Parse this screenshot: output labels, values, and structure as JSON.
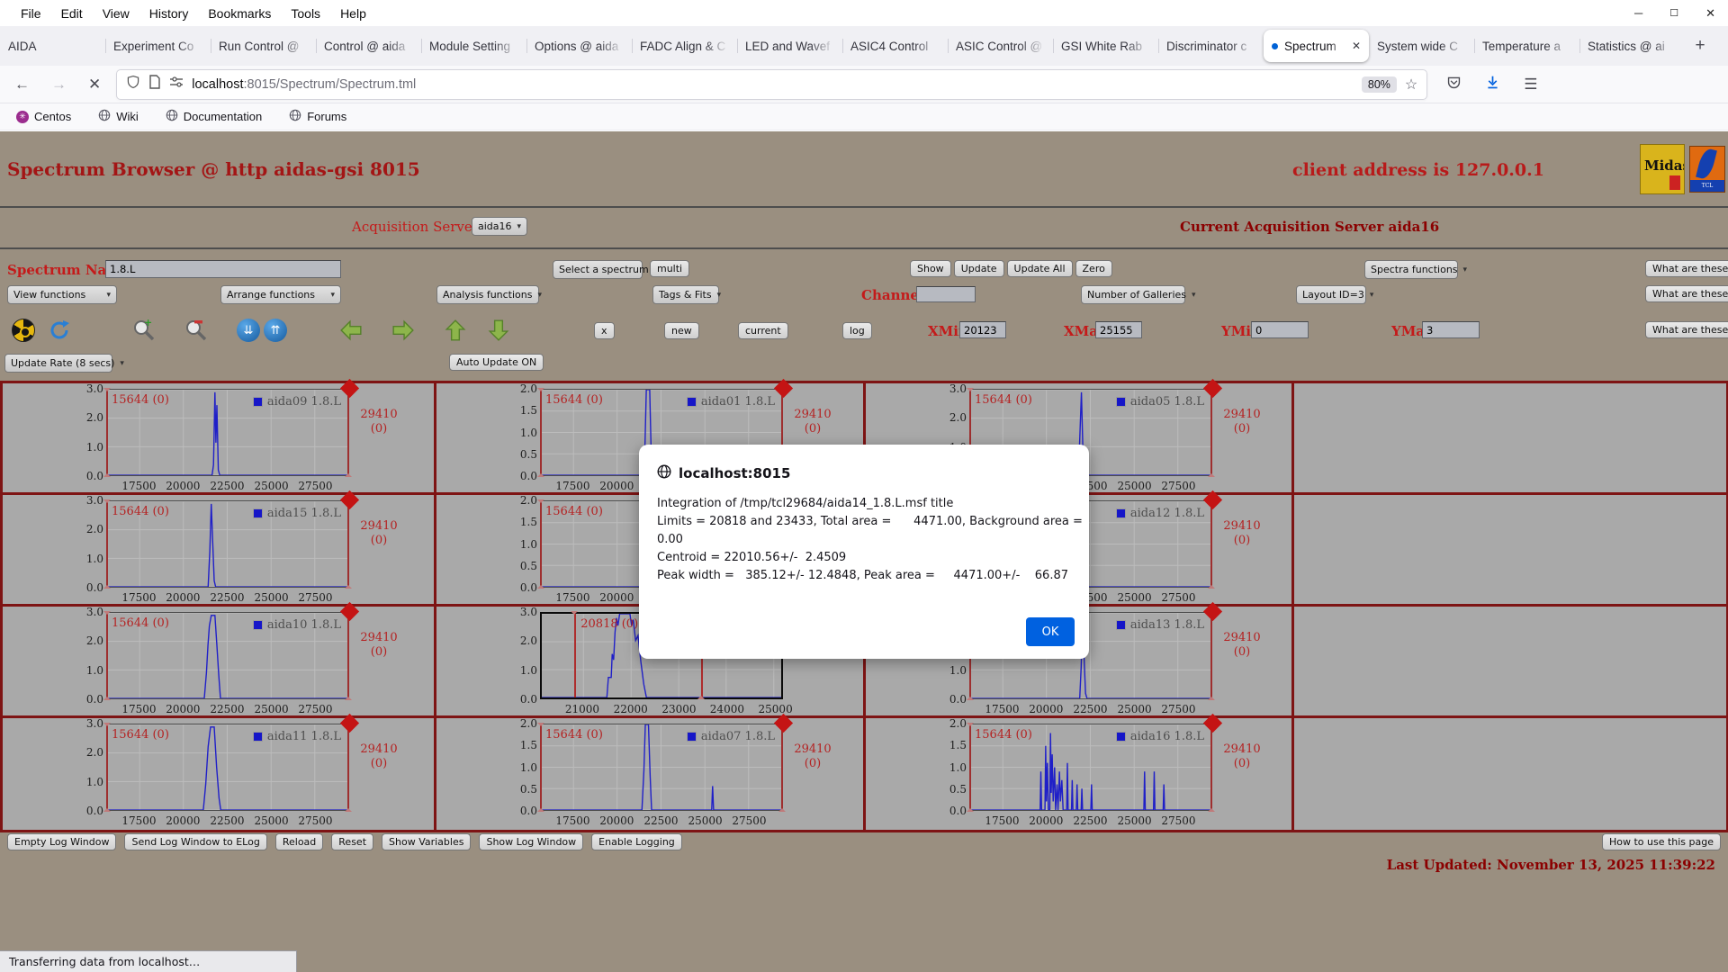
{
  "colors": {
    "page_bg": "#9a8f80",
    "gallery_bg": "#a9a9a9",
    "border_red": "#7e1414",
    "title_red": "#a31515",
    "label_red": "#c41a1a",
    "plot_line": "#2020c8",
    "marker_red": "#ae2d2d",
    "ok_blue": "#0061e0",
    "active_tab_dot": "#0062d6"
  },
  "menubar": {
    "items": [
      "File",
      "Edit",
      "View",
      "History",
      "Bookmarks",
      "Tools",
      "Help"
    ]
  },
  "tabbar": {
    "active_index": 12,
    "new_tab_label": "+",
    "tabs": [
      "AIDA",
      "Experiment Co",
      "Run Control @",
      "Control @ aida",
      "Module Setting",
      "Options @ aida",
      "FADC Align & C",
      "LED and Wavef",
      "ASIC4 Control",
      "ASIC Control @",
      "GSI White Rab",
      "Discriminator c",
      "Spectrum",
      "System wide C",
      "Temperature a",
      "Statistics @ ai"
    ]
  },
  "navbar": {
    "url_host": "localhost",
    "url_path": ":8015/Spectrum/Spectrum.tml",
    "zoom_badge": "80%"
  },
  "bookmarks": {
    "items": [
      "Centos",
      "Wiki",
      "Documentation",
      "Forums"
    ]
  },
  "page": {
    "title": "Spectrum Browser @ http aidas-gsi 8015",
    "client": "client address is 127.0.0.1",
    "acquisition_label": "Acquisition Servers",
    "acquisition_value": "aida16",
    "current_server": "Current Acquisition Server aida16",
    "spectrum_name_label": "Spectrum Name:",
    "spectrum_name_value": "1.8.L",
    "select_spectrum": "Select a spectrum",
    "multi": "multi",
    "show": "Show",
    "update": "Update",
    "update_all": "Update All",
    "zero": "Zero",
    "spectra_functions": "Spectra functions",
    "what_are_these": "What are these?",
    "view_functions": "View functions",
    "arrange_functions": "Arrange functions",
    "analysis_functions": "Analysis functions",
    "tags_fits": "Tags & Fits",
    "channel_label": "Channel:",
    "channel_value": "",
    "number_galleries": "Number of Galleries",
    "layout_id": "Layout ID=3",
    "btn_x": "x",
    "btn_new": "new",
    "btn_current": "current",
    "btn_log": "log",
    "xmin_label": "XMin",
    "xmin": "20123",
    "xmax_label": "XMax",
    "xmax": "25155",
    "ymin_label": "YMin",
    "ymin": "0",
    "ymax_label": "YMax",
    "ymax": "3",
    "update_rate": "Update Rate (8 secs)",
    "auto_update": "Auto Update ON",
    "footer_buttons": [
      "Empty Log Window",
      "Send Log Window to ELog",
      "Reload",
      "Reset",
      "Show Variables",
      "Show Log Window",
      "Enable Logging"
    ],
    "how_to": "How to use this page",
    "last_updated": "Last Updated: November 13, 2025 11:39:22",
    "logo_midas": "Midas",
    "logo_tcl": "TCL"
  },
  "gallery": {
    "xticks": [
      "17500",
      "20000",
      "22500",
      "25000",
      "27500"
    ],
    "xtick_pos": [
      0.135,
      0.316,
      0.498,
      0.68,
      0.861
    ],
    "special_xticks": [
      "21000",
      "22000",
      "23000",
      "24000",
      "25000"
    ],
    "special_xtick_pos": [
      0.174,
      0.373,
      0.572,
      0.77,
      0.969
    ],
    "yticks4": [
      "3.0",
      "2.0",
      "1.0",
      "0.0"
    ],
    "yticks5": [
      "2.0",
      "1.5",
      "1.0",
      "0.5",
      "0.0"
    ],
    "plots": [
      {
        "row": 1,
        "col": 1,
        "legend": "aida09 1.8.L",
        "left_label": "15644 (0)",
        "right_top": "29410",
        "right_bot": "(0)",
        "yset": 4,
        "line": [
          [
            0,
            0
          ],
          [
            0.435,
            0
          ],
          [
            0.441,
            0.12
          ],
          [
            0.447,
            0.97
          ],
          [
            0.451,
            0.38
          ],
          [
            0.455,
            0.82
          ],
          [
            0.461,
            0.06
          ],
          [
            0.467,
            0
          ],
          [
            1,
            0
          ]
        ]
      },
      {
        "row": 1,
        "col": 2,
        "legend": "aida01 1.8.L",
        "left_label": "15644 (0)",
        "right_top": "29410",
        "right_bot": "(0)",
        "yset": 5,
        "line": [
          [
            0,
            0
          ],
          [
            0.425,
            0
          ],
          [
            0.431,
            0.3
          ],
          [
            0.437,
            1
          ],
          [
            0.451,
            1
          ],
          [
            0.457,
            0.28
          ],
          [
            0.463,
            0
          ],
          [
            1,
            0
          ]
        ]
      },
      {
        "row": 1,
        "col": 3,
        "legend": "aida05 1.8.L",
        "left_label": "15644 (0)",
        "right_top": "29410",
        "right_bot": "(0)",
        "yset": 4,
        "line": [
          [
            0,
            0
          ],
          [
            0.449,
            0
          ],
          [
            0.455,
            0.5
          ],
          [
            0.461,
            0.97
          ],
          [
            0.467,
            0.32
          ],
          [
            0.473,
            0
          ],
          [
            1,
            0
          ]
        ]
      },
      {
        "row": 2,
        "col": 1,
        "legend": "aida15 1.8.L",
        "left_label": "15644 (0)",
        "right_top": "29410",
        "right_bot": "(0)",
        "yset": 4,
        "line": [
          [
            0,
            0
          ],
          [
            0.419,
            0
          ],
          [
            0.426,
            0.42
          ],
          [
            0.432,
            0.97
          ],
          [
            0.438,
            0.5
          ],
          [
            0.444,
            0.07
          ],
          [
            0.45,
            0
          ],
          [
            1,
            0
          ]
        ]
      },
      {
        "row": 2,
        "col": 2,
        "legend": "",
        "left_label": "15644 (0)",
        "right_top": "29410",
        "right_bot": "(0)",
        "yset": 5,
        "line": [
          [
            0,
            0
          ],
          [
            0.419,
            0
          ],
          [
            0.427,
            0.62
          ],
          [
            0.433,
            1
          ],
          [
            0.445,
            1
          ],
          [
            0.451,
            0.3
          ],
          [
            0.457,
            0
          ],
          [
            1,
            0
          ]
        ]
      },
      {
        "row": 2,
        "col": 3,
        "legend": "aida12 1.8.L",
        "left_label": "15644 (0)",
        "right_top": "29410",
        "right_bot": "(0)",
        "yset": 5,
        "line": [
          [
            0,
            0
          ],
          [
            0.414,
            0
          ],
          [
            0.421,
            0.52
          ],
          [
            0.427,
            0.95
          ],
          [
            0.433,
            0.4
          ],
          [
            0.439,
            0
          ],
          [
            1,
            0
          ]
        ]
      },
      {
        "row": 3,
        "col": 1,
        "legend": "aida10 1.8.L",
        "left_label": "15644 (0)",
        "right_top": "29410",
        "right_bot": "(0)",
        "yset": 4,
        "line": [
          [
            0,
            0
          ],
          [
            0.403,
            0
          ],
          [
            0.412,
            0.3
          ],
          [
            0.418,
            0.62
          ],
          [
            0.424,
            0.85
          ],
          [
            0.432,
            0.97
          ],
          [
            0.447,
            0.97
          ],
          [
            0.455,
            0.62
          ],
          [
            0.463,
            0.27
          ],
          [
            0.47,
            0
          ],
          [
            1,
            0
          ]
        ]
      },
      {
        "row": 3,
        "col": 2,
        "special": true,
        "yset": 4,
        "marker_label": "20818 (0)",
        "markers": [
          {
            "pos": 0.138,
            "top": 0
          },
          {
            "pos": 0.658,
            "top": 0.3
          }
        ],
        "line": [
          [
            0,
            0
          ],
          [
            0.272,
            0
          ],
          [
            0.278,
            0.24
          ],
          [
            0.29,
            0.24
          ],
          [
            0.294,
            0.52
          ],
          [
            0.3,
            0.45
          ],
          [
            0.306,
            0.78
          ],
          [
            0.312,
            0.95
          ],
          [
            0.318,
            0.86
          ],
          [
            0.325,
            1
          ],
          [
            0.368,
            1
          ],
          [
            0.375,
            0.86
          ],
          [
            0.382,
            0.93
          ],
          [
            0.392,
            0.68
          ],
          [
            0.402,
            0.74
          ],
          [
            0.414,
            0.42
          ],
          [
            0.426,
            0.16
          ],
          [
            0.437,
            0
          ],
          [
            1,
            0
          ]
        ]
      },
      {
        "row": 3,
        "col": 3,
        "legend": "aida13 1.8.L",
        "left_label": "15644 (0)",
        "right_top": "29410",
        "right_bot": "(0)",
        "yset": 4,
        "line": [
          [
            0,
            0
          ],
          [
            0.454,
            0
          ],
          [
            0.46,
            0.36
          ],
          [
            0.466,
            0.97
          ],
          [
            0.472,
            0.5
          ],
          [
            0.478,
            0.06
          ],
          [
            0.484,
            0
          ],
          [
            1,
            0
          ]
        ]
      },
      {
        "row": 4,
        "col": 1,
        "legend": "aida11 1.8.L",
        "left_label": "15644 (0)",
        "right_top": "29410",
        "right_bot": "(0)",
        "yset": 4,
        "line": [
          [
            0,
            0
          ],
          [
            0.399,
            0
          ],
          [
            0.409,
            0.3
          ],
          [
            0.419,
            0.74
          ],
          [
            0.429,
            0.97
          ],
          [
            0.444,
            0.97
          ],
          [
            0.454,
            0.5
          ],
          [
            0.464,
            0.14
          ],
          [
            0.471,
            0
          ],
          [
            1,
            0
          ]
        ]
      },
      {
        "row": 4,
        "col": 2,
        "legend": "aida07 1.8.L",
        "left_label": "15644 (0)",
        "right_top": "29410",
        "right_bot": "(0)",
        "yset": 5,
        "line": [
          [
            0,
            0
          ],
          [
            0.419,
            0
          ],
          [
            0.427,
            0.46
          ],
          [
            0.433,
            1
          ],
          [
            0.446,
            1
          ],
          [
            0.453,
            0.4
          ],
          [
            0.459,
            0
          ],
          [
            0.708,
            0
          ],
          [
            0.712,
            0.28
          ],
          [
            0.716,
            0
          ],
          [
            1,
            0
          ]
        ]
      },
      {
        "row": 4,
        "col": 3,
        "legend": "aida16 1.8.L",
        "left_label": "15644 (0)",
        "right_top": "29410",
        "right_bot": "(0)",
        "yset": 5,
        "line": [
          [
            0,
            0
          ],
          [
            0.29,
            0
          ],
          [
            0.293,
            0.45
          ],
          [
            0.296,
            0
          ],
          [
            0.31,
            0
          ],
          [
            0.313,
            0.75
          ],
          [
            0.316,
            0.1
          ],
          [
            0.32,
            0.55
          ],
          [
            0.324,
            0
          ],
          [
            0.33,
            0
          ],
          [
            0.333,
            0.9
          ],
          [
            0.336,
            0.2
          ],
          [
            0.34,
            0.65
          ],
          [
            0.344,
            0.1
          ],
          [
            0.35,
            0.5
          ],
          [
            0.354,
            0
          ],
          [
            0.36,
            0.3
          ],
          [
            0.364,
            0
          ],
          [
            0.37,
            0.45
          ],
          [
            0.374,
            0.1
          ],
          [
            0.38,
            0.35
          ],
          [
            0.385,
            0
          ],
          [
            0.4,
            0
          ],
          [
            0.403,
            0.55
          ],
          [
            0.406,
            0
          ],
          [
            0.42,
            0
          ],
          [
            0.423,
            0.35
          ],
          [
            0.426,
            0
          ],
          [
            0.44,
            0
          ],
          [
            0.443,
            0.3
          ],
          [
            0.446,
            0
          ],
          [
            0.46,
            0
          ],
          [
            0.463,
            0.25
          ],
          [
            0.466,
            0
          ],
          [
            0.5,
            0
          ],
          [
            0.503,
            0.3
          ],
          [
            0.506,
            0
          ],
          [
            0.72,
            0
          ],
          [
            0.723,
            0.45
          ],
          [
            0.726,
            0
          ],
          [
            0.76,
            0
          ],
          [
            0.763,
            0.45
          ],
          [
            0.766,
            0
          ],
          [
            0.8,
            0
          ],
          [
            0.803,
            0.3
          ],
          [
            0.806,
            0
          ],
          [
            1,
            0
          ]
        ]
      }
    ]
  },
  "dialog": {
    "title": "localhost:8015",
    "lines": [
      "Integration of /tmp/tcl29684/aida14_1.8.L.msf title",
      "Limits = 20818 and 23433, Total area =      4471.00, Background area =",
      "0.00",
      "Centroid = 22010.56+/-  2.4509",
      "Peak width =   385.12+/- 12.4848, Peak area =     4471.00+/-    66.87"
    ],
    "ok": "OK"
  },
  "status_text": "Transferring data from localhost…"
}
